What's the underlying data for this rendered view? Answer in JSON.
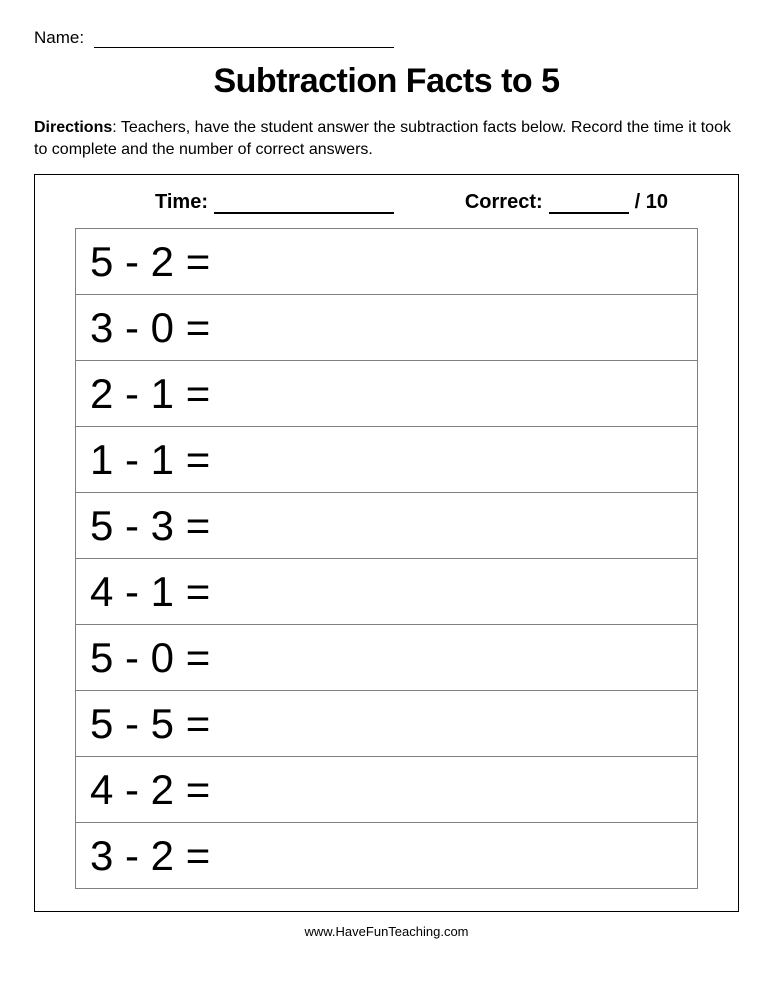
{
  "name_label": "Name:",
  "title": "Subtraction Facts to 5",
  "directions_label": "Directions",
  "directions_text": ": Teachers, have the student answer the subtraction facts below. Record the time it took to complete and the number of correct answers.",
  "time_label": "Time:",
  "correct_label": "Correct:",
  "correct_total": "/ 10",
  "problems": [
    "5 - 2 =",
    "3 - 0 =",
    "2 - 1 =",
    "1 - 1 =",
    "5 - 3 =",
    "4 - 1 =",
    "5 - 0 =",
    "5 - 5 =",
    "4 - 2 =",
    "3 - 2 ="
  ],
  "footer": "www.HaveFunTeaching.com",
  "colors": {
    "text": "#000000",
    "table_border": "#808080",
    "background": "#ffffff"
  },
  "fonts": {
    "body_size": 16,
    "title_size": 34,
    "problem_size": 42,
    "score_size": 20
  }
}
